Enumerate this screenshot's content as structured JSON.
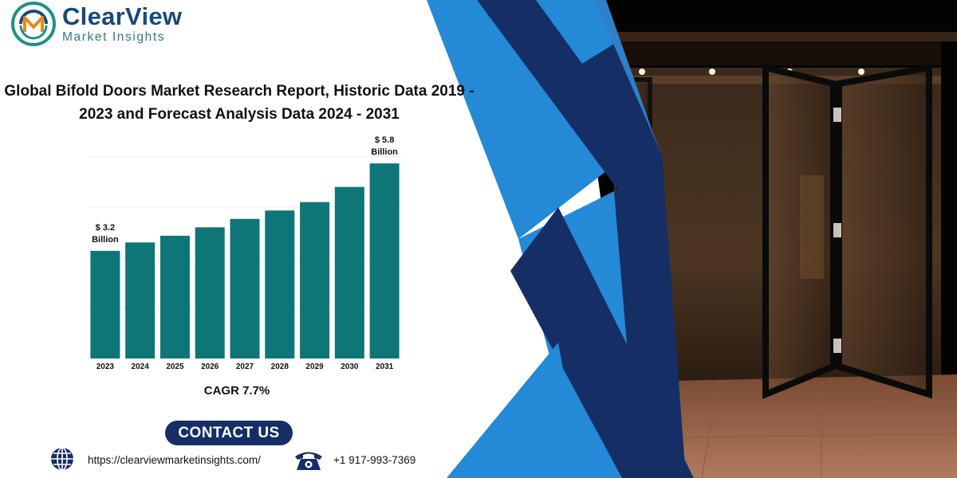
{
  "brand": {
    "name": "ClearView",
    "subtitle": "Market Insights"
  },
  "report_title_line1": "Global Bifold Doors Market Research Report, Historic Data 2019 -",
  "report_title_line2": "2023 and Forecast Analysis Data 2024 - 2031",
  "chart_data": {
    "type": "bar",
    "categories": [
      "2023",
      "2024",
      "2025",
      "2026",
      "2027",
      "2028",
      "2029",
      "2030",
      "2031"
    ],
    "values": [
      3.2,
      3.45,
      3.65,
      3.9,
      4.15,
      4.4,
      4.65,
      5.1,
      5.8
    ],
    "ylim": [
      0,
      6.3
    ],
    "grid": true,
    "annotations": [
      {
        "category": "2023",
        "line1": "$ 3.2",
        "line2": "Billion"
      },
      {
        "category": "2031",
        "line1": "$ 5.8",
        "line2": "Billion"
      }
    ],
    "bar_color": "#0e7676"
  },
  "cagr_label": "CAGR 7.7%",
  "contact": {
    "button_label": "CONTACT US",
    "url": "https://clearviewmarketinsights.com/",
    "phone": "+1 917-993-7369"
  },
  "colors": {
    "navy": "#152e66",
    "blue": "#2489d6",
    "teal": "#0e7676"
  }
}
